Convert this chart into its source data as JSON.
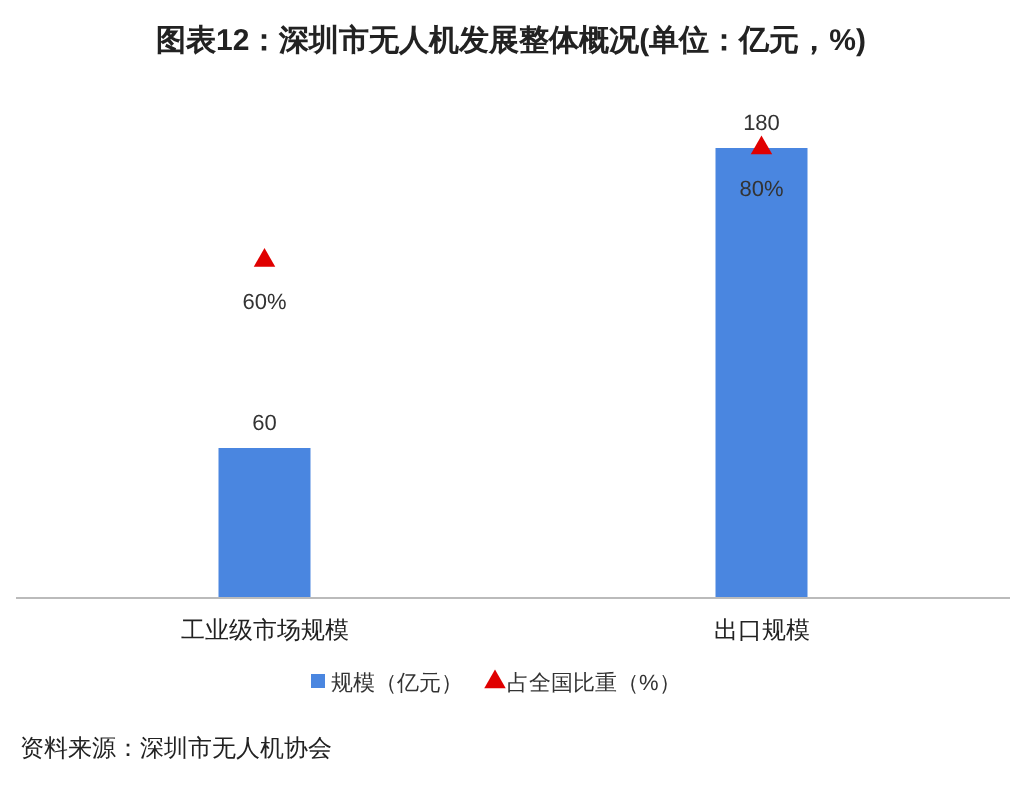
{
  "chart_data": {
    "type": "bar",
    "title": "图表12：深圳市无人机发展整体概况(单位：亿元，%)",
    "categories": [
      "工业级市场规模",
      "出口规模"
    ],
    "series": [
      {
        "name": "规模（亿元）",
        "color": "#4a86e0",
        "values": [
          60,
          180
        ],
        "value_labels": [
          "60",
          "180"
        ]
      },
      {
        "name": "占全国比重（%）",
        "type": "scatter",
        "axis": "y2",
        "color": "#e00000",
        "marker": "triangle",
        "values": [
          60,
          80
        ],
        "value_labels": [
          "60%",
          "80%"
        ]
      }
    ],
    "legend": "bottom",
    "grid": false,
    "annotations": [
      "资料来源：深圳市无人机协会"
    ]
  }
}
